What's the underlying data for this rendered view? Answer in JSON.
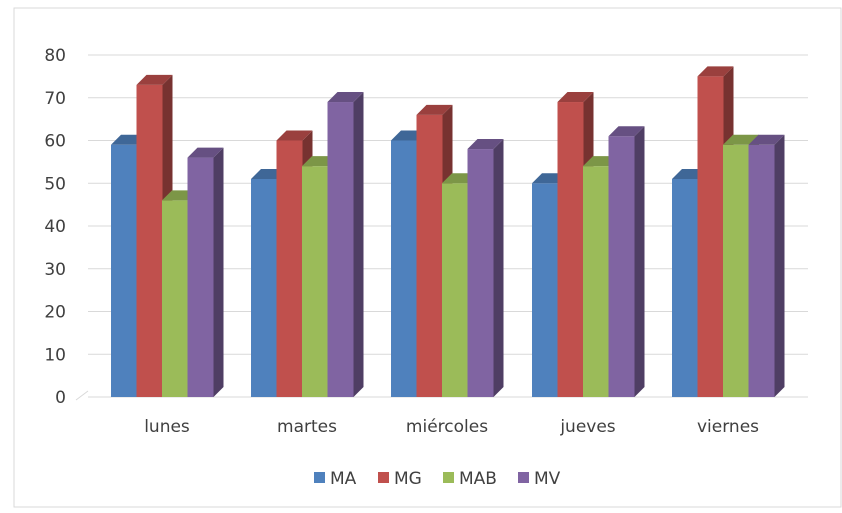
{
  "chart_data": {
    "type": "bar",
    "title": "",
    "xlabel": "",
    "ylabel": "",
    "categories": [
      "lunes",
      "martes",
      "miércoles",
      "jueves",
      "viernes"
    ],
    "ylim": [
      0,
      80
    ],
    "yticks": [
      0,
      10,
      20,
      30,
      40,
      50,
      60,
      70,
      80
    ],
    "grid": true,
    "legend_position": "bottom",
    "style": "3d-clustered-column",
    "series": [
      {
        "name": "MA",
        "color": "#4F81BD",
        "values": [
          59,
          51,
          60,
          50,
          51
        ]
      },
      {
        "name": "MG",
        "color": "#C0504D",
        "values": [
          73,
          60,
          66,
          69,
          75
        ]
      },
      {
        "name": "MAB",
        "color": "#9BBB59",
        "values": [
          46,
          54,
          50,
          54,
          59
        ]
      },
      {
        "name": "MV",
        "color": "#8064A2",
        "values": [
          56,
          69,
          58,
          61,
          59
        ]
      }
    ]
  }
}
